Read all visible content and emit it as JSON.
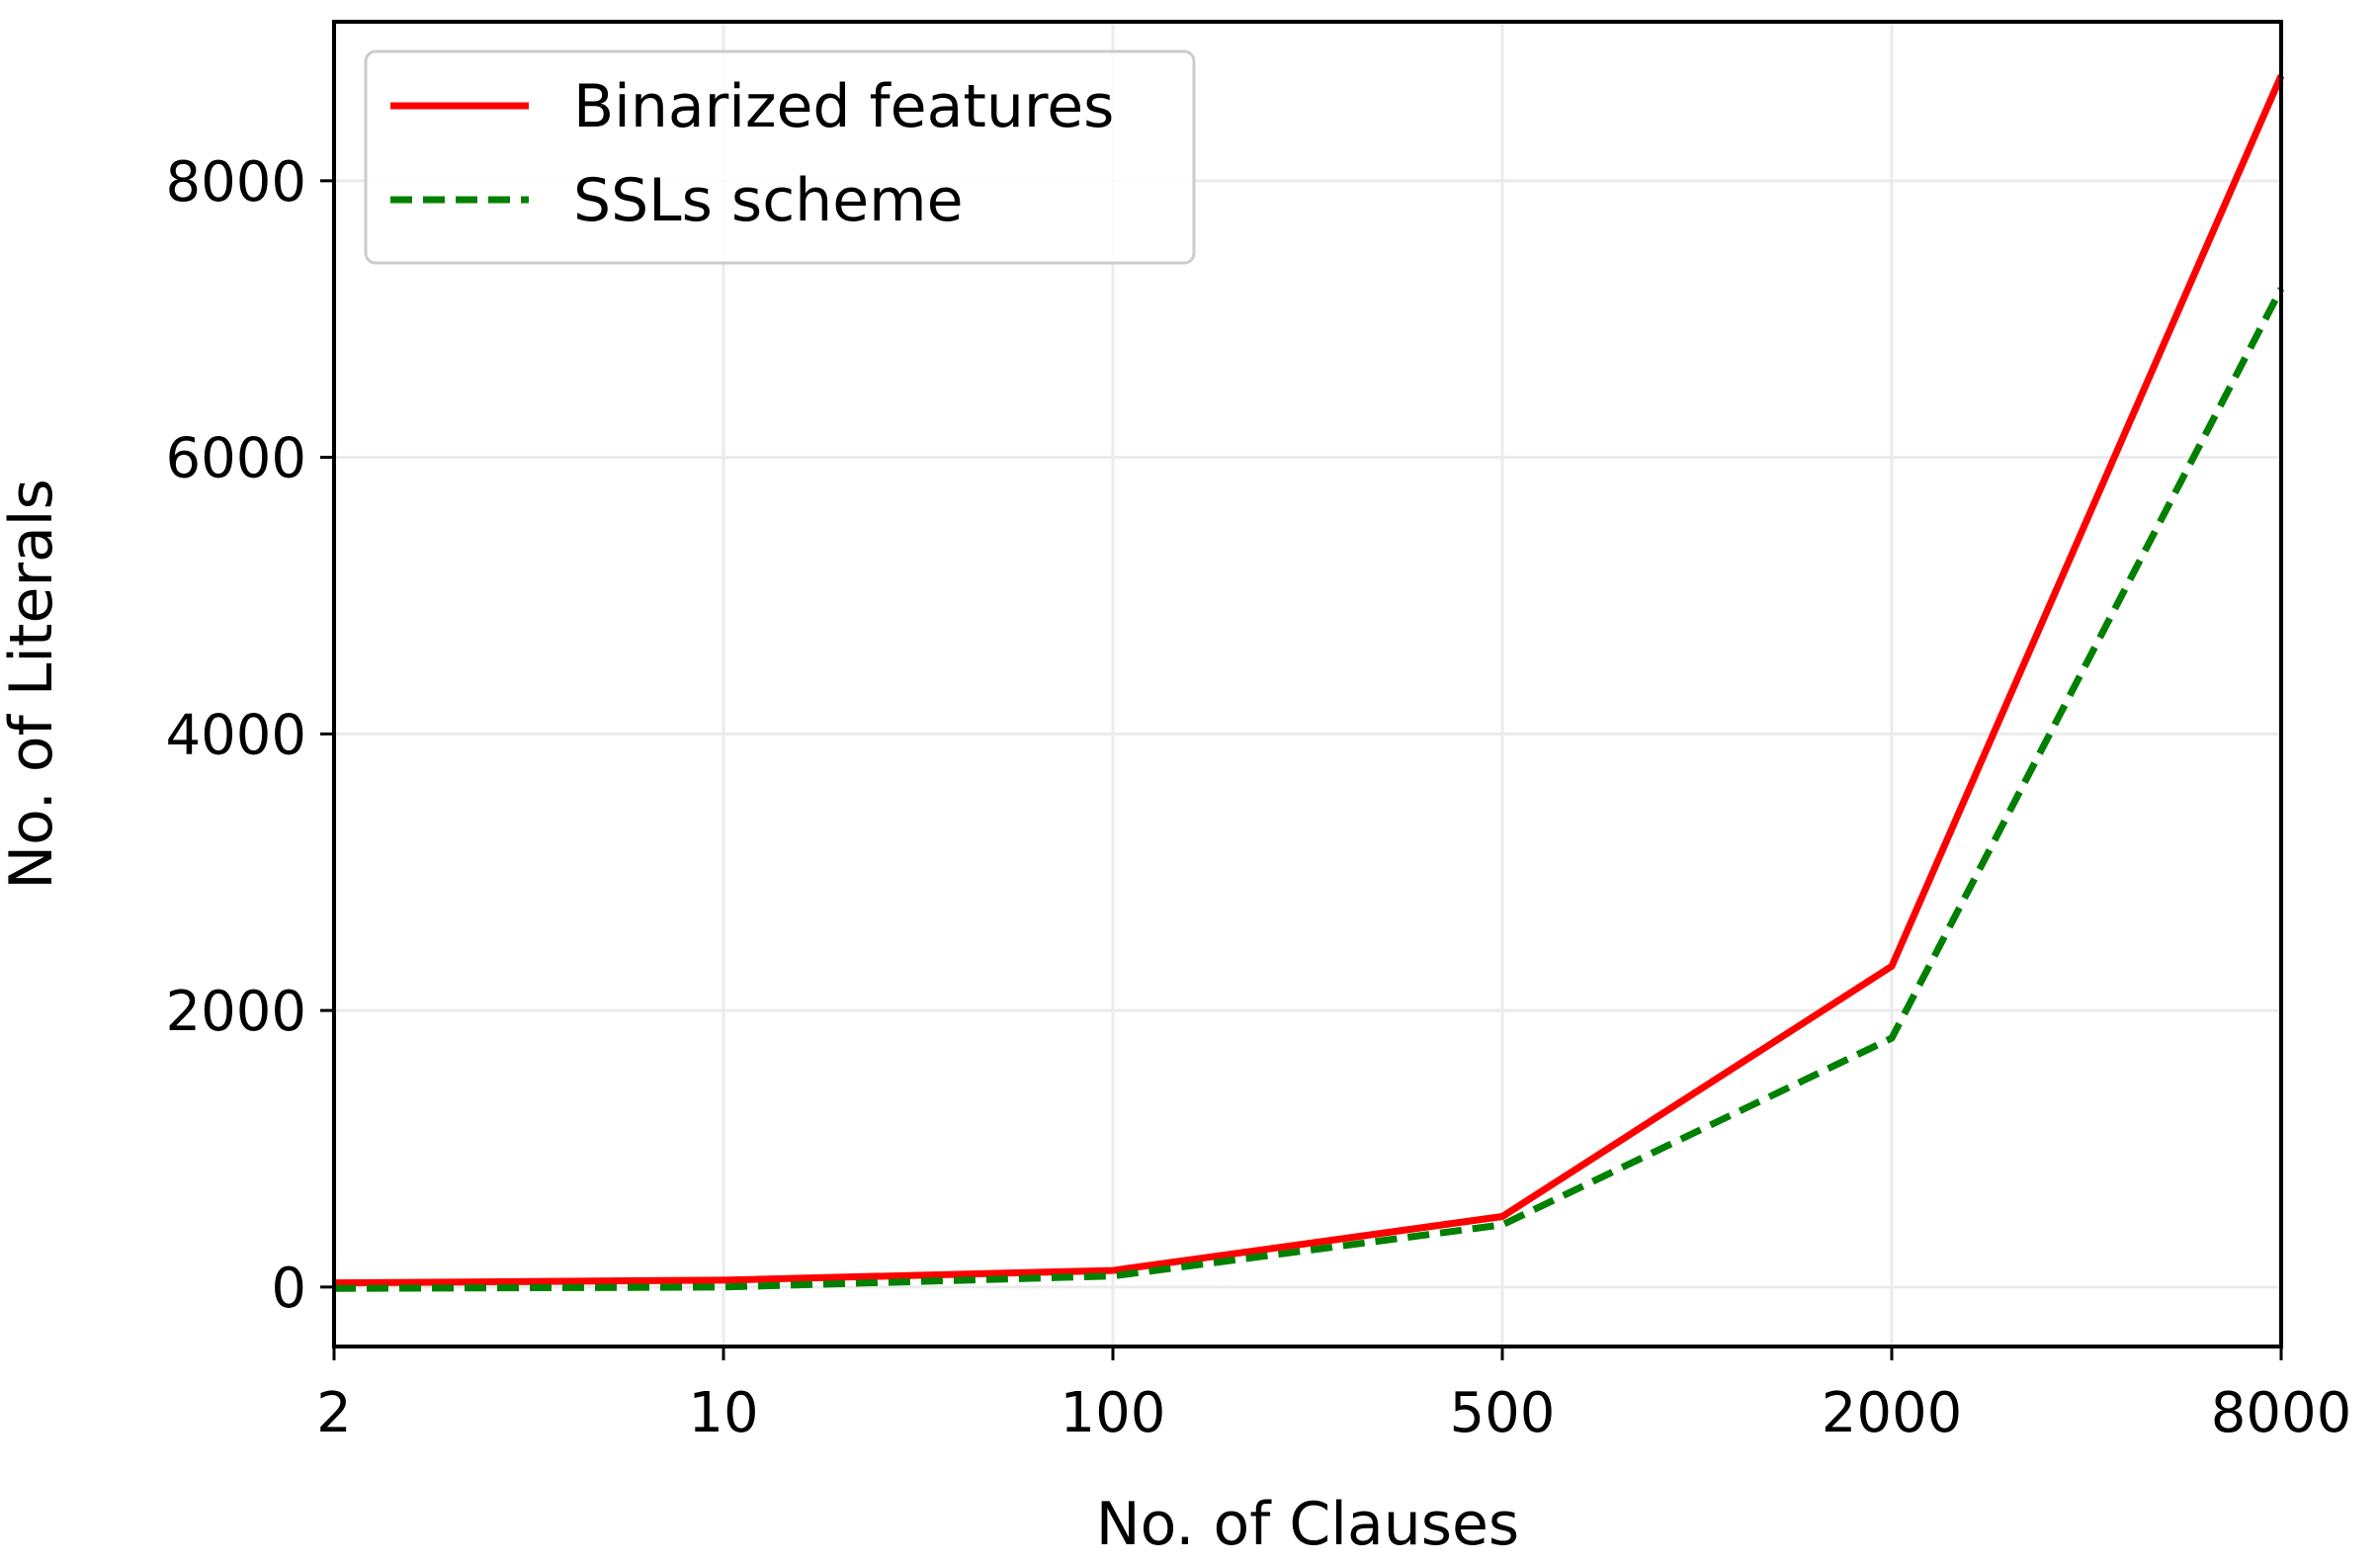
{
  "chart_data": {
    "type": "line",
    "categories": [
      "2",
      "10",
      "100",
      "500",
      "2000",
      "8000"
    ],
    "xlabel": "No. of Clauses",
    "ylabel": "No. of Literals",
    "ylim": [
      -430,
      9150
    ],
    "yticks": [
      0,
      2000,
      4000,
      6000,
      8000
    ],
    "grid": true,
    "legend_position": "top-left",
    "series": [
      {
        "name": "Binarized features",
        "values": [
          30,
          50,
          120,
          510,
          2320,
          8760
        ],
        "color": "#ff0000",
        "style": "solid"
      },
      {
        "name": "SSLs scheme",
        "values": [
          -10,
          0,
          80,
          450,
          1800,
          7220
        ],
        "color": "#008000",
        "style": "dashed"
      }
    ]
  }
}
